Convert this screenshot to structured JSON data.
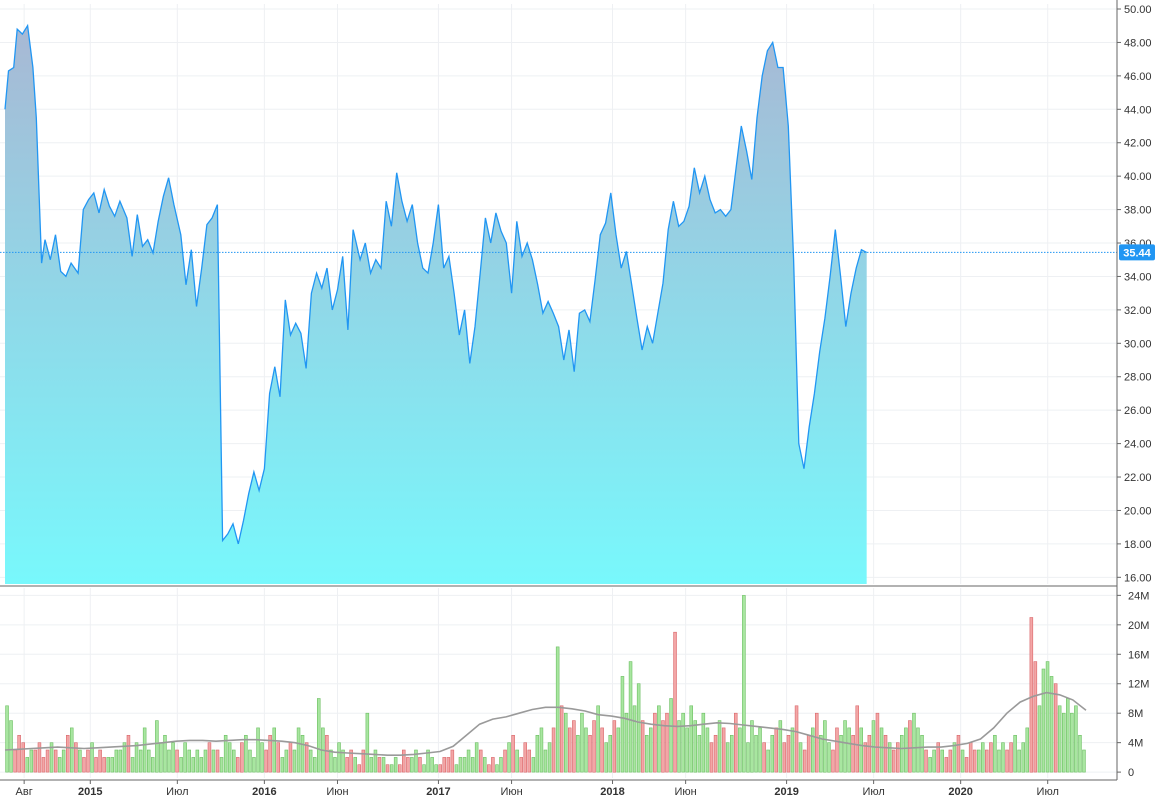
{
  "colors": {
    "price_line": "#2196f3",
    "area_top": "#a8b8d4",
    "area_bottom": "#78f8fc",
    "volume_up": "#a8e6a0",
    "volume_up_edge": "#6cbf62",
    "volume_down": "#f3a6a6",
    "volume_down_edge": "#d9676b",
    "volume_ma": "#9a9a9a",
    "last_price_badge": "#2196f3"
  },
  "chart_data": [
    {
      "type": "area",
      "name": "price",
      "ylim": [
        15.6,
        50.3
      ],
      "yticks": [
        "16.00",
        "18.00",
        "20.00",
        "22.00",
        "24.00",
        "26.00",
        "28.00",
        "30.00",
        "32.00",
        "34.00",
        "36.00",
        "38.00",
        "40.00",
        "42.00",
        "44.00",
        "46.00",
        "48.00",
        "50.00"
      ],
      "xticks": [
        {
          "label": "Авг",
          "x": 2014.62,
          "bold": false
        },
        {
          "label": "2015",
          "x": 2015.0,
          "bold": true
        },
        {
          "label": "Июл",
          "x": 2015.5,
          "bold": false
        },
        {
          "label": "2016",
          "x": 2016.0,
          "bold": true
        },
        {
          "label": "Июн",
          "x": 2016.42,
          "bold": false
        },
        {
          "label": "2017",
          "x": 2017.0,
          "bold": true
        },
        {
          "label": "Июн",
          "x": 2017.42,
          "bold": false
        },
        {
          "label": "2018",
          "x": 2018.0,
          "bold": true
        },
        {
          "label": "Июн",
          "x": 2018.42,
          "bold": false
        },
        {
          "label": "2019",
          "x": 2019.0,
          "bold": true
        },
        {
          "label": "Июл",
          "x": 2019.5,
          "bold": false
        },
        {
          "label": "2020",
          "x": 2020.0,
          "bold": true
        },
        {
          "label": "Июл",
          "x": 2020.5,
          "bold": false
        }
      ],
      "last_value": "35.44",
      "points": [
        [
          2014.51,
          44.0
        ],
        [
          2014.53,
          46.3
        ],
        [
          2014.56,
          46.5
        ],
        [
          2014.58,
          48.8
        ],
        [
          2014.61,
          48.5
        ],
        [
          2014.64,
          49.0
        ],
        [
          2014.67,
          46.5
        ],
        [
          2014.69,
          43.5
        ],
        [
          2014.72,
          34.8
        ],
        [
          2014.74,
          36.2
        ],
        [
          2014.77,
          35.0
        ],
        [
          2014.8,
          36.5
        ],
        [
          2014.83,
          34.3
        ],
        [
          2014.86,
          34.0
        ],
        [
          2014.89,
          34.8
        ],
        [
          2014.93,
          34.2
        ],
        [
          2014.96,
          38.0
        ],
        [
          2014.99,
          38.6
        ],
        [
          2015.02,
          39.0
        ],
        [
          2015.05,
          37.8
        ],
        [
          2015.08,
          39.2
        ],
        [
          2015.11,
          38.2
        ],
        [
          2015.14,
          37.6
        ],
        [
          2015.17,
          38.5
        ],
        [
          2015.21,
          37.5
        ],
        [
          2015.24,
          35.2
        ],
        [
          2015.27,
          37.7
        ],
        [
          2015.3,
          35.8
        ],
        [
          2015.33,
          36.2
        ],
        [
          2015.36,
          35.4
        ],
        [
          2015.39,
          37.3
        ],
        [
          2015.42,
          38.8
        ],
        [
          2015.45,
          39.9
        ],
        [
          2015.48,
          38.3
        ],
        [
          2015.52,
          36.5
        ],
        [
          2015.55,
          33.5
        ],
        [
          2015.58,
          35.6
        ],
        [
          2015.61,
          32.2
        ],
        [
          2015.64,
          34.5
        ],
        [
          2015.67,
          37.1
        ],
        [
          2015.7,
          37.5
        ],
        [
          2015.73,
          38.3
        ],
        [
          2015.76,
          18.2
        ],
        [
          2015.79,
          18.6
        ],
        [
          2015.82,
          19.2
        ],
        [
          2015.85,
          18.0
        ],
        [
          2015.88,
          19.4
        ],
        [
          2015.91,
          21.0
        ],
        [
          2015.94,
          22.3
        ],
        [
          2015.97,
          21.2
        ],
        [
          2016.0,
          22.5
        ],
        [
          2016.03,
          27.0
        ],
        [
          2016.06,
          28.6
        ],
        [
          2016.09,
          26.8
        ],
        [
          2016.12,
          32.6
        ],
        [
          2016.15,
          30.5
        ],
        [
          2016.18,
          31.2
        ],
        [
          2016.21,
          30.6
        ],
        [
          2016.24,
          28.5
        ],
        [
          2016.27,
          33.0
        ],
        [
          2016.3,
          34.2
        ],
        [
          2016.33,
          33.3
        ],
        [
          2016.36,
          34.5
        ],
        [
          2016.39,
          32.0
        ],
        [
          2016.42,
          33.2
        ],
        [
          2016.45,
          35.2
        ],
        [
          2016.48,
          30.8
        ],
        [
          2016.51,
          36.8
        ],
        [
          2016.55,
          35.0
        ],
        [
          2016.58,
          36.0
        ],
        [
          2016.61,
          34.2
        ],
        [
          2016.64,
          35.0
        ],
        [
          2016.67,
          34.5
        ],
        [
          2016.7,
          38.5
        ],
        [
          2016.73,
          37.0
        ],
        [
          2016.76,
          40.2
        ],
        [
          2016.79,
          38.5
        ],
        [
          2016.82,
          37.3
        ],
        [
          2016.85,
          38.3
        ],
        [
          2016.88,
          36.0
        ],
        [
          2016.91,
          34.5
        ],
        [
          2016.94,
          34.2
        ],
        [
          2016.97,
          36.0
        ],
        [
          2017.0,
          38.3
        ],
        [
          2017.03,
          34.5
        ],
        [
          2017.06,
          35.2
        ],
        [
          2017.09,
          33.0
        ],
        [
          2017.12,
          30.5
        ],
        [
          2017.15,
          32.0
        ],
        [
          2017.18,
          28.8
        ],
        [
          2017.21,
          31.0
        ],
        [
          2017.24,
          34.2
        ],
        [
          2017.27,
          37.5
        ],
        [
          2017.3,
          36.0
        ],
        [
          2017.33,
          37.8
        ],
        [
          2017.36,
          36.7
        ],
        [
          2017.39,
          36.0
        ],
        [
          2017.42,
          33.0
        ],
        [
          2017.45,
          37.3
        ],
        [
          2017.48,
          35.2
        ],
        [
          2017.51,
          36.0
        ],
        [
          2017.54,
          35.0
        ],
        [
          2017.57,
          33.5
        ],
        [
          2017.6,
          31.8
        ],
        [
          2017.63,
          32.5
        ],
        [
          2017.66,
          31.8
        ],
        [
          2017.69,
          31.0
        ],
        [
          2017.72,
          29.0
        ],
        [
          2017.75,
          30.8
        ],
        [
          2017.78,
          28.3
        ],
        [
          2017.81,
          31.8
        ],
        [
          2017.84,
          32.0
        ],
        [
          2017.87,
          31.3
        ],
        [
          2017.9,
          33.8
        ],
        [
          2017.93,
          36.5
        ],
        [
          2017.96,
          37.2
        ],
        [
          2017.99,
          39.0
        ],
        [
          2018.02,
          36.5
        ],
        [
          2018.05,
          34.5
        ],
        [
          2018.08,
          35.5
        ],
        [
          2018.11,
          33.5
        ],
        [
          2018.14,
          31.5
        ],
        [
          2018.17,
          29.6
        ],
        [
          2018.2,
          31.0
        ],
        [
          2018.23,
          30.0
        ],
        [
          2018.26,
          31.8
        ],
        [
          2018.29,
          33.6
        ],
        [
          2018.32,
          36.8
        ],
        [
          2018.35,
          38.5
        ],
        [
          2018.38,
          37.0
        ],
        [
          2018.41,
          37.3
        ],
        [
          2018.44,
          38.2
        ],
        [
          2018.47,
          40.5
        ],
        [
          2018.5,
          39.0
        ],
        [
          2018.53,
          40.0
        ],
        [
          2018.56,
          38.6
        ],
        [
          2018.59,
          37.8
        ],
        [
          2018.62,
          38.0
        ],
        [
          2018.65,
          37.6
        ],
        [
          2018.68,
          38.0
        ],
        [
          2018.71,
          40.5
        ],
        [
          2018.74,
          43.0
        ],
        [
          2018.77,
          41.5
        ],
        [
          2018.8,
          39.8
        ],
        [
          2018.83,
          43.5
        ],
        [
          2018.86,
          46.0
        ],
        [
          2018.89,
          47.5
        ],
        [
          2018.92,
          48.0
        ],
        [
          2018.95,
          46.5
        ],
        [
          2018.98,
          46.5
        ],
        [
          2019.01,
          43.0
        ],
        [
          2019.04,
          35.0
        ],
        [
          2019.07,
          24.0
        ],
        [
          2019.1,
          22.5
        ],
        [
          2019.13,
          25.0
        ],
        [
          2019.16,
          27.0
        ],
        [
          2019.19,
          29.5
        ],
        [
          2019.22,
          31.5
        ],
        [
          2019.25,
          34.0
        ],
        [
          2019.28,
          36.8
        ],
        [
          2019.31,
          34.0
        ],
        [
          2019.34,
          31.0
        ],
        [
          2019.37,
          33.0
        ],
        [
          2019.4,
          34.5
        ],
        [
          2019.43,
          35.6
        ],
        [
          2019.46,
          35.44
        ]
      ]
    },
    {
      "type": "bar",
      "name": "volume",
      "ylim": [
        -0.8,
        25
      ],
      "yticks": [
        "0",
        "4M",
        "8M",
        "12M",
        "16M",
        "20M",
        "24M"
      ],
      "ma_label": "",
      "bars_up_down_pattern": "derived",
      "values": [
        9,
        7,
        3,
        5,
        4,
        2,
        3,
        3,
        4,
        2,
        3,
        4,
        3,
        2,
        3,
        5,
        6,
        4,
        3,
        2,
        3,
        4,
        2,
        3,
        2,
        2,
        2,
        3,
        3,
        4,
        5,
        2,
        4,
        3,
        6,
        3,
        2,
        7,
        4,
        5,
        3,
        4,
        3,
        2,
        4,
        3,
        2,
        3,
        2,
        3,
        4,
        3,
        3,
        2,
        5,
        4,
        3,
        2,
        4,
        5,
        3,
        2,
        6,
        4,
        3,
        5,
        6,
        4,
        2,
        3,
        4,
        3,
        6,
        5,
        4,
        3,
        2,
        10,
        6,
        5,
        3,
        2,
        4,
        3,
        2,
        3,
        2,
        1,
        3,
        8,
        2,
        3,
        2,
        2,
        1,
        1,
        2,
        1,
        3,
        2,
        2,
        3,
        2,
        1,
        3,
        2,
        1,
        1,
        2,
        2,
        3,
        1,
        2,
        2,
        3,
        2,
        4,
        3,
        2,
        1,
        2,
        1,
        2,
        3,
        4,
        5,
        3,
        2,
        4,
        3,
        2,
        5,
        6,
        3,
        4,
        6,
        17,
        9,
        8,
        6,
        7,
        5,
        8,
        6,
        5,
        7,
        9,
        6,
        4,
        5,
        7,
        6,
        13,
        8,
        15,
        9,
        12,
        7,
        5,
        6,
        8,
        9,
        7,
        8,
        10,
        19,
        7,
        8,
        6,
        9,
        7,
        5,
        8,
        6,
        4,
        5,
        7,
        6,
        4,
        5,
        8,
        6,
        24,
        4,
        7,
        5,
        6,
        4,
        3,
        5,
        6,
        7,
        4,
        5,
        6,
        9,
        4,
        3,
        5,
        6,
        8,
        5,
        7,
        4,
        3,
        6,
        5,
        7,
        6,
        5,
        9,
        6,
        4,
        5,
        7,
        8,
        6,
        5,
        4,
        3,
        4,
        5,
        6,
        7,
        8,
        6,
        5,
        3,
        2,
        3,
        4,
        3,
        2,
        3,
        4,
        5,
        3,
        2,
        4,
        3,
        3,
        4,
        3,
        4,
        5,
        3,
        4,
        3,
        4,
        5,
        3,
        4,
        6,
        21,
        15,
        9,
        14,
        15,
        13,
        12,
        9,
        8,
        10,
        8,
        9,
        5,
        3
      ],
      "ma_values": [
        3.0,
        3.1,
        3.2,
        3.3,
        3.4,
        3.3,
        3.2,
        3.3,
        3.4,
        3.5,
        3.6,
        3.8,
        4.0,
        4.2,
        4.3,
        4.3,
        4.2,
        4.3,
        4.4,
        4.4,
        4.3,
        4.2,
        4.0,
        3.6,
        3.0,
        2.7,
        2.6,
        2.5,
        2.4,
        2.3,
        2.3,
        2.4,
        2.6,
        2.8,
        3.5,
        5.0,
        6.5,
        7.2,
        7.5,
        8.0,
        8.5,
        8.8,
        8.8,
        8.6,
        8.3,
        7.8,
        7.6,
        7.3,
        6.8,
        6.5,
        6.3,
        6.2,
        6.3,
        6.5,
        6.7,
        6.6,
        6.4,
        6.2,
        6.0,
        5.8,
        5.5,
        5.0,
        4.5,
        4.2,
        3.9,
        3.6,
        3.4,
        3.3,
        3.2,
        3.3,
        3.4,
        3.4,
        3.6,
        3.9,
        4.5,
        6.0,
        8.0,
        9.5,
        10.3,
        10.8,
        10.5,
        9.8,
        8.4
      ]
    }
  ]
}
